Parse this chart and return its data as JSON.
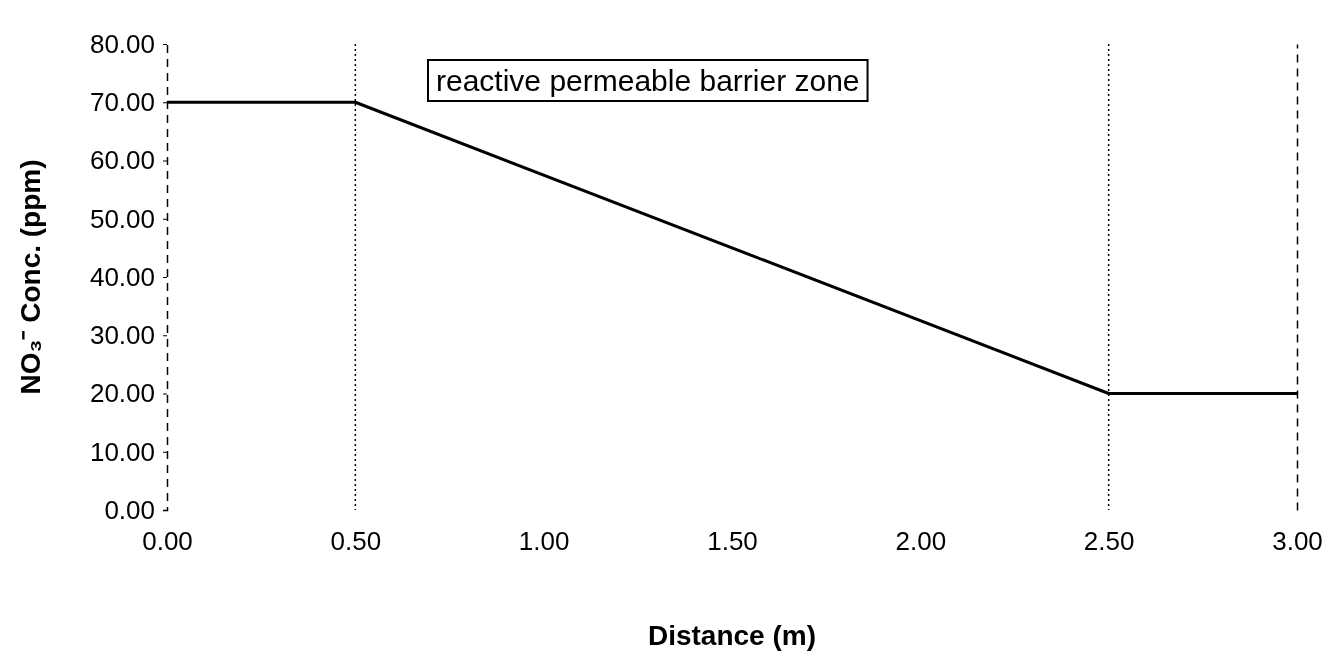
{
  "chart_data": {
    "type": "line",
    "xlabel": "Distance (m)",
    "ylabel": "NO₃⁻ Conc. (ppm)",
    "x": [
      0,
      0.5,
      2.5,
      3
    ],
    "series": [
      {
        "color": "#000000",
        "values": [
          70,
          70,
          20,
          20
        ]
      }
    ],
    "xlim": [
      0,
      3
    ],
    "ylim": [
      0,
      80
    ],
    "xticks": [
      {
        "value": 0,
        "label": "0.00"
      },
      {
        "value": 0.5,
        "label": "0.50"
      },
      {
        "value": 1,
        "label": "1.00"
      },
      {
        "value": 1.5,
        "label": "1.50"
      },
      {
        "value": 2,
        "label": "2.00"
      },
      {
        "value": 2.5,
        "label": "2.50"
      },
      {
        "value": 3,
        "label": "3.00"
      }
    ],
    "yticks": [
      {
        "value": 0,
        "label": "0.00"
      },
      {
        "value": 10,
        "label": "10.00"
      },
      {
        "value": 20,
        "label": "20.00"
      },
      {
        "value": 30,
        "label": "30.00"
      },
      {
        "value": 40,
        "label": "40.00"
      },
      {
        "value": 50,
        "label": "50.00"
      },
      {
        "value": 60,
        "label": "60.00"
      },
      {
        "value": 70,
        "label": "70.00"
      },
      {
        "value": 80,
        "label": "80.00"
      }
    ],
    "annotations": [
      "reactive permeable barrier zone"
    ],
    "ref_lines": [
      {
        "axis": "x",
        "value": 0.5,
        "line_style": "dotted"
      },
      {
        "axis": "x",
        "value": 2.5,
        "line_style": "dotted"
      }
    ],
    "grid": false,
    "marker": "none",
    "line_style": "solid"
  }
}
